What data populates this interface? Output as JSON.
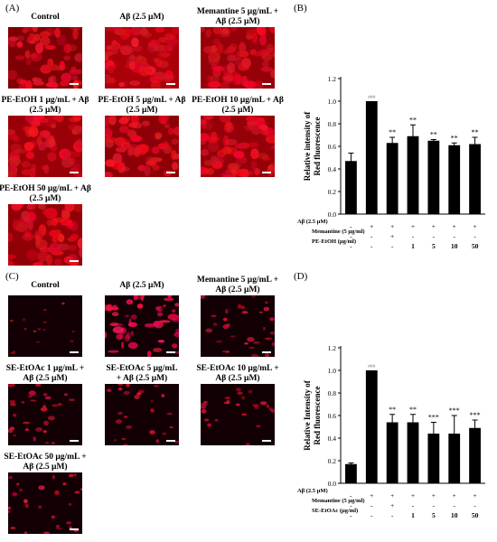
{
  "panels": {
    "A": {
      "label": "(A)",
      "images": [
        {
          "caption_lines": [
            "Control"
          ]
        },
        {
          "caption_lines": [
            "Aβ (2.5 μM)"
          ]
        },
        {
          "caption_lines": [
            "Memantine 5 μg/mL +",
            "Aβ (2.5 μM)"
          ]
        },
        {
          "caption_lines": [
            "PE-EtOH 1 μg/mL + Aβ",
            "(2.5 μM)"
          ]
        },
        {
          "caption_lines": [
            "PE-EtOH 5 μg/mL + Aβ",
            "(2.5 μM)"
          ]
        },
        {
          "caption_lines": [
            "PE-EtOH 10 μg/mL + Aβ",
            "(2.5 μM)"
          ]
        },
        {
          "caption_lines": [
            "PE-EtOH 50 μg/mL + Aβ",
            "(2.5 μM)"
          ]
        }
      ],
      "intensities": [
        0.45,
        1.0,
        0.75,
        0.8,
        0.65,
        0.75,
        0.7
      ]
    },
    "B": {
      "label": "(B)"
    },
    "C": {
      "label": "(C)",
      "images": [
        {
          "caption_lines": [
            "Control"
          ]
        },
        {
          "caption_lines": [
            "Aβ (2.5 μM)"
          ]
        },
        {
          "caption_lines": [
            "Memantine 5 μg/mL +",
            "Aβ (2.5 μM)"
          ]
        },
        {
          "caption_lines": [
            "SE-EtOAc 1 μg/mL +",
            "Aβ (2.5 μM)"
          ]
        },
        {
          "caption_lines": [
            "SE-EtOAc 5 μg/mL",
            "+ Aβ (2.5 μM)"
          ]
        },
        {
          "caption_lines": [
            "SE-EtOAc 10 μg/mL +",
            "Aβ (2.5 μM)"
          ]
        },
        {
          "caption_lines": [
            "SE-EtOAc 50 μg/mL +",
            "Aβ (2.5 μM)"
          ]
        }
      ],
      "intensities": [
        0.15,
        1.0,
        0.55,
        0.55,
        0.45,
        0.45,
        0.5
      ]
    },
    "D": {
      "label": "(D)"
    }
  },
  "colors": {
    "fluorescence_red": "#d6001c",
    "bar": "#000000"
  },
  "chart_data": [
    {
      "type": "bar",
      "panel": "B",
      "ylabel": "Relative intensity of Red fluorescence",
      "ylim": [
        0,
        1.2
      ],
      "yticks": [
        "0.0",
        "0.2",
        "0.4",
        "0.6",
        "0.8",
        "1.0",
        "1.2"
      ],
      "values": [
        0.47,
        1.0,
        0.63,
        0.69,
        0.65,
        0.61,
        0.62
      ],
      "errors": [
        0.07,
        0.0,
        0.05,
        0.1,
        0.01,
        0.02,
        0.06
      ],
      "significance": [
        "",
        "###",
        "**",
        "**",
        "**",
        "**",
        "**"
      ],
      "treatment_rows": [
        {
          "label": "Aβ (2.5 μM)",
          "cells": [
            "-",
            "+",
            "+",
            "+",
            "+",
            "+",
            "+"
          ]
        },
        {
          "label": "Memantine (5 μg/ml)",
          "cells": [
            "-",
            "-",
            "+",
            "-",
            "-",
            "-",
            "-"
          ]
        },
        {
          "label": "PE-EtOH (μg/ml)",
          "cells": [
            "-",
            "-",
            "-",
            "1",
            "5",
            "10",
            "50"
          ]
        }
      ]
    },
    {
      "type": "bar",
      "panel": "D",
      "ylabel": "Relative Intensity of Red fluorescence",
      "ylim": [
        0,
        1.2
      ],
      "yticks": [
        "0.0",
        "0.2",
        "0.4",
        "0.6",
        "0.8",
        "1.0",
        "1.2"
      ],
      "values": [
        0.17,
        1.0,
        0.54,
        0.54,
        0.44,
        0.44,
        0.49
      ],
      "errors": [
        0.01,
        0.0,
        0.07,
        0.07,
        0.1,
        0.16,
        0.07
      ],
      "significance": [
        "",
        "###",
        "**",
        "**",
        "***",
        "***",
        "***"
      ],
      "treatment_rows": [
        {
          "label": "Aβ (2.5 μM)",
          "cells": [
            "-",
            "+",
            "+",
            "+",
            "+",
            "+",
            "+"
          ]
        },
        {
          "label": "Memantine (5 μg/ml)",
          "cells": [
            "-",
            "-",
            "+",
            "-",
            "-",
            "-",
            "-"
          ]
        },
        {
          "label": "SE-EtOAc (μg/ml)",
          "cells": [
            "-",
            "-",
            "-",
            "1",
            "5",
            "10",
            "50"
          ]
        }
      ]
    }
  ]
}
